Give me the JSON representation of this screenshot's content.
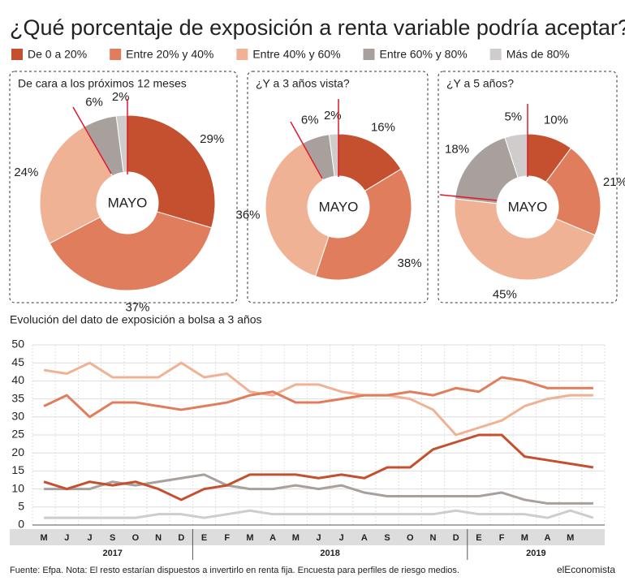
{
  "title": "¿Qué porcentaje de exposición a renta variable podría aceptar?",
  "chart_data": [
    {
      "type": "donut",
      "title": "De cara a los próximos 12 meses",
      "center_label": "MAYO",
      "values": [
        29,
        37,
        24,
        6,
        2
      ],
      "value_labels": [
        "29%",
        "37%",
        "24%",
        "6%",
        "2%"
      ]
    },
    {
      "type": "donut",
      "title": "¿Y a 3 años vista?",
      "center_label": "MAYO",
      "values": [
        16,
        38,
        36,
        6,
        2
      ],
      "value_labels": [
        "16%",
        "38%",
        "36%",
        "6%",
        "2%"
      ]
    },
    {
      "type": "donut",
      "title": "¿Y a 5 años?",
      "center_label": "MAYO",
      "values": [
        10,
        21,
        45,
        18,
        5
      ],
      "value_labels": [
        "10%",
        "21%",
        "45%",
        "18%",
        "5%"
      ]
    },
    {
      "type": "line",
      "title": "Evolución del dato de exposición a bolsa a 3 años",
      "categories": [
        "M",
        "J",
        "J",
        "S",
        "O",
        "N",
        "D",
        "E",
        "F",
        "M",
        "A",
        "M",
        "J",
        "J",
        "A",
        "S",
        "O",
        "N",
        "D",
        "E",
        "F",
        "M",
        "A",
        "M",
        null
      ],
      "years": [
        "2017",
        "2018",
        "2019"
      ],
      "ylim": [
        0,
        50
      ],
      "yticks": [
        0,
        5,
        10,
        15,
        20,
        25,
        30,
        35,
        40,
        45,
        50
      ],
      "grid": true,
      "series": [
        {
          "name": "De 0 a 20%",
          "color": "#c4502f",
          "values": [
            12,
            10,
            12,
            11,
            12,
            10,
            7,
            10,
            11,
            14,
            14,
            14,
            13,
            14,
            13,
            16,
            16,
            21,
            23,
            25,
            25,
            19,
            18,
            17,
            16
          ]
        },
        {
          "name": "Entre 20% y 40%",
          "color": "#e07d5c",
          "values": [
            33,
            36,
            30,
            34,
            34,
            33,
            32,
            33,
            34,
            36,
            37,
            34,
            34,
            35,
            36,
            36,
            37,
            36,
            38,
            37,
            41,
            40,
            38,
            38,
            38
          ]
        },
        {
          "name": "Entre 40% y 60%",
          "color": "#f0b295",
          "values": [
            43,
            42,
            45,
            41,
            41,
            41,
            45,
            41,
            42,
            37,
            36,
            39,
            39,
            37,
            36,
            36,
            35,
            32,
            25,
            27,
            29,
            33,
            35,
            36,
            36
          ]
        },
        {
          "name": "Entre 60% y 80%",
          "color": "#a8a09c",
          "values": [
            10,
            10,
            10,
            12,
            11,
            12,
            13,
            14,
            11,
            10,
            10,
            11,
            10,
            11,
            9,
            8,
            8,
            8,
            8,
            8,
            9,
            7,
            6,
            6,
            6
          ]
        },
        {
          "name": "Más de 80%",
          "color": "#cfcccb",
          "values": [
            2,
            2,
            2,
            2,
            2,
            3,
            3,
            2,
            3,
            4,
            3,
            3,
            3,
            3,
            3,
            3,
            3,
            3,
            4,
            3,
            3,
            3,
            2,
            4,
            2
          ]
        }
      ]
    }
  ],
  "footer": {
    "source": "Fuente: Efpa. Nota: El resto estarían dispuestos a invertirlo en renta fija. Encuesta para perfiles de riesgo medios.",
    "brand": "elEconomista"
  }
}
